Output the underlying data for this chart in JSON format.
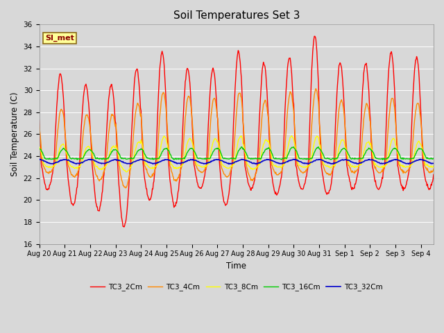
{
  "title": "Soil Temperatures Set 3",
  "xlabel": "Time",
  "ylabel": "Soil Temperature (C)",
  "ylim": [
    16,
    36
  ],
  "xlim_days": 15.5,
  "plot_bg": "#d8d8d8",
  "fig_bg": "#d8d8d8",
  "annotation_text": "SI_met",
  "annotation_bg": "#ffff99",
  "annotation_border": "#8b6914",
  "line_colors": {
    "TC3_2Cm": "#ff0000",
    "TC3_4Cm": "#ff8800",
    "TC3_8Cm": "#ffff00",
    "TC3_16Cm": "#00cc00",
    "TC3_32Cm": "#0000cc"
  },
  "line_widths": {
    "TC3_2Cm": 1.0,
    "TC3_4Cm": 1.0,
    "TC3_8Cm": 1.0,
    "TC3_16Cm": 1.0,
    "TC3_32Cm": 1.2
  },
  "tick_dates": [
    "Aug 20",
    "Aug 21",
    "Aug 22",
    "Aug 23",
    "Aug 24",
    "Aug 25",
    "Aug 26",
    "Aug 27",
    "Aug 28",
    "Aug 29",
    "Aug 30",
    "Aug 31",
    "Sep 1",
    "Sep 2",
    "Sep 3",
    "Sep 4"
  ],
  "yticks": [
    16,
    18,
    20,
    22,
    24,
    26,
    28,
    30,
    32,
    34,
    36
  ]
}
